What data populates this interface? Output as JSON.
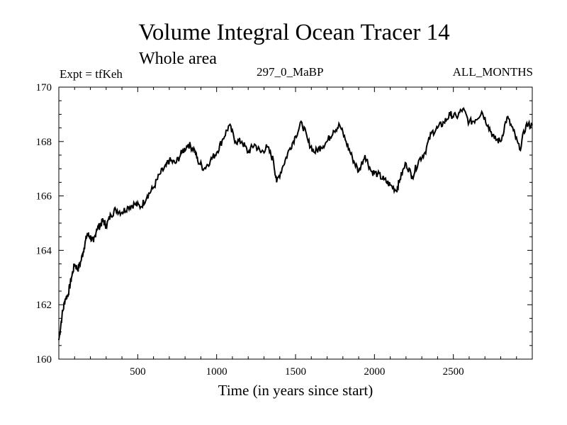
{
  "header": {
    "title": "Volume Integral Ocean Tracer 14",
    "subtitle": "Whole area",
    "experiment": "Expt = tfKeh",
    "period": "297_0_MaBP",
    "months": "ALL_MONTHS"
  },
  "chart_data": {
    "type": "line",
    "title": "Volume Integral Ocean Tracer 14",
    "xlabel": "Time (in years since start)",
    "ylabel": "",
    "xlim": [
      0,
      3000
    ],
    "ylim": [
      160,
      170
    ],
    "xticks": [
      500,
      1000,
      1500,
      2000,
      2500
    ],
    "yticks": [
      160,
      162,
      164,
      166,
      168,
      170
    ],
    "grid": false,
    "series": [
      {
        "name": "",
        "color": "#000000",
        "x": [
          0,
          20,
          40,
          60,
          80,
          100,
          120,
          140,
          160,
          180,
          200,
          220,
          240,
          260,
          280,
          300,
          330,
          360,
          400,
          440,
          480,
          520,
          560,
          600,
          640,
          680,
          700,
          740,
          780,
          820,
          860,
          880,
          920,
          960,
          1000,
          1040,
          1080,
          1120,
          1160,
          1200,
          1240,
          1280,
          1320,
          1360,
          1380,
          1420,
          1460,
          1500,
          1540,
          1580,
          1620,
          1660,
          1700,
          1740,
          1780,
          1820,
          1860,
          1900,
          1940,
          1980,
          2020,
          2060,
          2100,
          2140,
          2160,
          2200,
          2240,
          2280,
          2320,
          2360,
          2400,
          2440,
          2480,
          2520,
          2560,
          2600,
          2640,
          2680,
          2720,
          2760,
          2800,
          2840,
          2880,
          2920,
          2960,
          3000
        ],
        "values": [
          160.7,
          161.6,
          162.2,
          162.4,
          163.0,
          163.5,
          163.3,
          163.6,
          164.1,
          164.6,
          164.5,
          164.3,
          164.8,
          164.9,
          165.1,
          164.9,
          165.3,
          165.5,
          165.4,
          165.6,
          165.7,
          165.6,
          166.0,
          166.3,
          166.8,
          167.1,
          167.3,
          167.2,
          167.6,
          167.9,
          167.7,
          167.3,
          167.0,
          167.3,
          167.6,
          168.1,
          168.6,
          168.0,
          168.0,
          167.6,
          167.9,
          167.6,
          167.8,
          167.3,
          166.5,
          167.1,
          167.7,
          168.2,
          168.7,
          168.0,
          167.6,
          167.8,
          168.0,
          168.4,
          168.6,
          168.0,
          167.4,
          166.9,
          167.5,
          166.9,
          166.8,
          166.6,
          166.4,
          166.2,
          166.6,
          167.2,
          166.7,
          167.3,
          167.6,
          168.3,
          168.5,
          168.7,
          169.0,
          168.9,
          169.2,
          168.7,
          168.8,
          169.1,
          168.6,
          168.1,
          168.0,
          168.9,
          168.4,
          167.7,
          168.6,
          168.6
        ]
      }
    ]
  }
}
